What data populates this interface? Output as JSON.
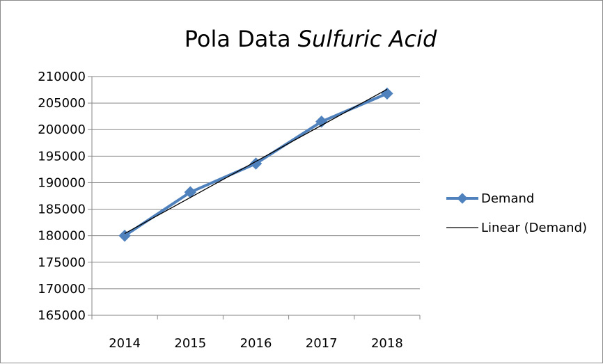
{
  "chart_data": {
    "type": "line",
    "title_plain": "Pola Data ",
    "title_italic": "Sulfuric Acid",
    "categories": [
      "2014",
      "2015",
      "2016",
      "2017",
      "2018"
    ],
    "series": [
      {
        "name": "Demand",
        "values": [
          180000,
          188200,
          193600,
          201500,
          206800
        ],
        "color": "#4f81bd",
        "marker": "diamond"
      },
      {
        "name": "Linear (Demand)",
        "values": [
          180400,
          187200,
          194000,
          200800,
          207600
        ],
        "color": "#000000",
        "marker": "none"
      }
    ],
    "ylim": [
      165000,
      210000
    ],
    "yticks": [
      165000,
      170000,
      175000,
      180000,
      185000,
      190000,
      195000,
      200000,
      205000,
      210000
    ],
    "grid": true,
    "legend": "right"
  }
}
